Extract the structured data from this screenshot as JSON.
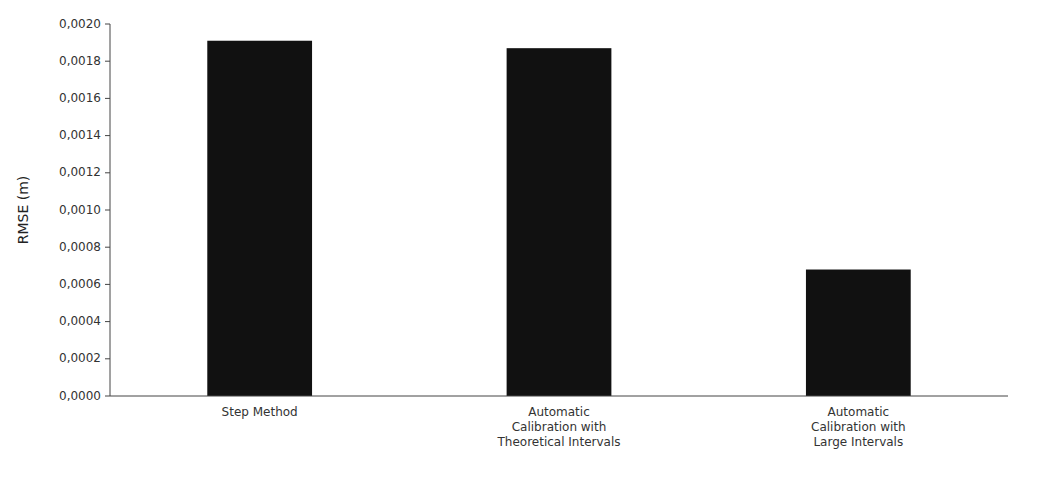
{
  "chart_data": {
    "type": "bar",
    "categories": [
      "Step Method",
      "Automatic\nCalibration with\nTheoretical Intervals",
      "Automatic\nCalibration with\nLarge Intervals"
    ],
    "values": [
      0.00191,
      0.00187,
      0.00068
    ],
    "color": "#111111",
    "ylabel": "RMSE (m)",
    "ylim": [
      0,
      0.002
    ],
    "yticks": [
      {
        "value": 0.0,
        "label": "0,0000"
      },
      {
        "value": 0.0002,
        "label": "0,0002"
      },
      {
        "value": 0.0004,
        "label": "0,0004"
      },
      {
        "value": 0.0006,
        "label": "0,0006"
      },
      {
        "value": 0.0008,
        "label": "0,0008"
      },
      {
        "value": 0.001,
        "label": "0,0010"
      },
      {
        "value": 0.0012,
        "label": "0,0012"
      },
      {
        "value": 0.0014,
        "label": "0,0014"
      },
      {
        "value": 0.0016,
        "label": "0,0016"
      },
      {
        "value": 0.0018,
        "label": "0,0018"
      },
      {
        "value": 0.002,
        "label": "0,0020"
      }
    ],
    "grid": false
  }
}
